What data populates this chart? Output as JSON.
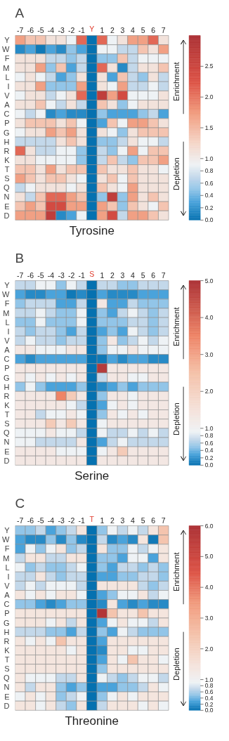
{
  "chart_data": [
    {
      "type": "heatmap",
      "title": "A",
      "xlabel": "Tyrosine",
      "annotations": [
        "Enrichment",
        "Depletion"
      ],
      "categories": [
        "-7",
        "-6",
        "-5",
        "-4",
        "-3",
        "-2",
        "-1",
        "Y",
        "1",
        "2",
        "3",
        "4",
        "5",
        "6",
        "7"
      ],
      "y_categories": [
        "Y",
        "W",
        "F",
        "M",
        "L",
        "I",
        "V",
        "A",
        "C",
        "P",
        "G",
        "H",
        "R",
        "K",
        "T",
        "S",
        "Q",
        "N",
        "E",
        "D"
      ],
      "clim": [
        0,
        3
      ],
      "cticks": [
        {
          "value": 0,
          "label": "0.0"
        },
        {
          "value": 0.2,
          "label": "0.2"
        },
        {
          "value": 0.4,
          "label": "0.4"
        },
        {
          "value": 0.6,
          "label": "0.6"
        },
        {
          "value": 0.8,
          "label": "0.8"
        },
        {
          "value": 1,
          "label": "1.0"
        },
        {
          "value": 1.5,
          "label": "1.5"
        },
        {
          "value": 2,
          "label": "2.0"
        },
        {
          "value": 2.5,
          "label": "2.5"
        }
      ],
      "colors": [
        "#0571b0",
        "#4aa3db",
        "#92c5e8",
        "#c3d8ea",
        "#eef2f5",
        "#f5d6c8",
        "#f19a7c",
        "#dc5245",
        "#ab3034"
      ],
      "cells": [
        [
          1.7,
          1.4,
          1.4,
          1.1,
          1.1,
          0.9,
          2.1,
          0,
          2.1,
          0.9,
          1.1,
          1.7,
          1.7,
          2.1,
          1.1
        ],
        [
          0.15,
          0.3,
          0.05,
          0.3,
          0.15,
          0.5,
          0.3,
          0,
          0.9,
          0.9,
          0.7,
          0.7,
          1.4,
          1.1,
          1.7
        ],
        [
          1.1,
          1.1,
          1.1,
          0.7,
          0.7,
          0.5,
          0.7,
          0,
          0.5,
          0.5,
          1.4,
          0.7,
          0.9,
          0.9,
          0.9
        ],
        [
          1.1,
          1.1,
          1.7,
          0.5,
          1.4,
          0.3,
          0.7,
          0,
          2.1,
          1.1,
          0.15,
          0.7,
          1.1,
          1.1,
          1.4
        ],
        [
          0.9,
          1.1,
          0.9,
          0.7,
          0.3,
          0.5,
          1.1,
          0,
          1.1,
          0.3,
          1.4,
          0.7,
          0.5,
          1.1,
          0.7
        ],
        [
          1.1,
          1.1,
          1.7,
          0.5,
          0.5,
          0.5,
          1.7,
          0,
          1.1,
          0.9,
          1.7,
          0.7,
          0.7,
          0.9,
          0.7
        ],
        [
          0.9,
          1.1,
          1.1,
          0.7,
          0.9,
          1.1,
          2.1,
          0,
          2.7,
          1.7,
          2.4,
          0.9,
          0.9,
          0.9,
          1.1
        ],
        [
          1.1,
          1.1,
          1.4,
          0.9,
          0.7,
          1.1,
          0.7,
          0,
          1.4,
          1.1,
          0.5,
          0.9,
          1.1,
          1.1,
          1.1
        ],
        [
          0.9,
          0.7,
          0.9,
          0.15,
          0.3,
          0.15,
          0.15,
          0,
          0.5,
          0.3,
          0.3,
          0.3,
          0.5,
          0.7,
          0.3
        ],
        [
          1.1,
          1.4,
          1.4,
          1.4,
          1.1,
          1.4,
          0.9,
          0,
          0.3,
          1.4,
          0.9,
          1.7,
          1.7,
          1.4,
          1.1
        ],
        [
          0.9,
          1.1,
          1.1,
          1.7,
          1.4,
          1.7,
          1.1,
          0,
          1.1,
          0.9,
          0.5,
          1.1,
          1.4,
          1.4,
          1.4
        ],
        [
          0.7,
          0.7,
          0.7,
          0.7,
          1.1,
          1.4,
          1.1,
          0,
          0.5,
          0.5,
          0.7,
          1.1,
          0.9,
          0.9,
          0.7
        ],
        [
          2.1,
          1.1,
          0.7,
          0.7,
          0.9,
          0.9,
          0.5,
          0,
          0.7,
          0.5,
          0.9,
          1.7,
          0.9,
          1.4,
          1.4
        ],
        [
          1.1,
          1.1,
          0.9,
          0.9,
          0.9,
          0.9,
          0.5,
          0,
          0.7,
          1.4,
          0.7,
          0.5,
          1.4,
          1.4,
          1.7
        ],
        [
          1.4,
          1.4,
          1.1,
          1.7,
          1.1,
          1.4,
          1.4,
          0,
          1.4,
          1.1,
          1.1,
          1.4,
          1.1,
          1.1,
          0.9
        ],
        [
          1.7,
          1.4,
          1.1,
          1.4,
          1.4,
          1.1,
          0.9,
          0,
          1.1,
          1.4,
          0.9,
          1.4,
          1.1,
          1.1,
          1.1
        ],
        [
          0.7,
          0.9,
          1.1,
          1.1,
          1.1,
          0.9,
          1.1,
          0,
          1.4,
          1.1,
          0.9,
          1.7,
          1.1,
          1.1,
          1.1
        ],
        [
          1.1,
          0.7,
          1.4,
          2.1,
          2.1,
          1.7,
          1.4,
          0,
          0.5,
          2.7,
          0.5,
          1.7,
          1.1,
          1.4,
          1.1
        ],
        [
          1.4,
          1.7,
          1.4,
          2.4,
          2.4,
          1.7,
          1.7,
          0,
          1.7,
          1.4,
          0.5,
          1.4,
          1.1,
          0.9,
          1.4
        ],
        [
          1.7,
          1.7,
          1.7,
          2.7,
          0.15,
          0.3,
          0.9,
          0,
          1.7,
          2.4,
          0.7,
          1.7,
          1.7,
          1.4,
          1.1
        ]
      ]
    },
    {
      "type": "heatmap",
      "title": "B",
      "xlabel": "Serine",
      "annotations": [
        "Enrichment",
        "Depletion"
      ],
      "categories": [
        "-7",
        "-6",
        "-5",
        "-4",
        "-3",
        "-2",
        "-1",
        "S",
        "1",
        "2",
        "3",
        "4",
        "5",
        "6",
        "7"
      ],
      "y_categories": [
        "Y",
        "W",
        "F",
        "M",
        "L",
        "I",
        "V",
        "A",
        "C",
        "P",
        "G",
        "H",
        "R",
        "K",
        "T",
        "S",
        "Q",
        "N",
        "E",
        "D"
      ],
      "clim": [
        0,
        5
      ],
      "cticks": [
        {
          "value": 0,
          "label": "0.0"
        },
        {
          "value": 0.2,
          "label": "0.2"
        },
        {
          "value": 0.4,
          "label": "0.4"
        },
        {
          "value": 0.6,
          "label": "0.6"
        },
        {
          "value": 0.8,
          "label": "0.8"
        },
        {
          "value": 1,
          "label": "1.0"
        },
        {
          "value": 2,
          "label": "2.0"
        },
        {
          "value": 3,
          "label": "3.0"
        },
        {
          "value": 4,
          "label": "4.0"
        },
        {
          "value": 5,
          "label": "5.0"
        }
      ],
      "colors": [
        "#0571b0",
        "#4aa3db",
        "#92c5e8",
        "#c3d8ea",
        "#eef2f5",
        "#f5e2da",
        "#f4c1a9",
        "#ee8466",
        "#ab3034"
      ],
      "cells": [
        [
          0.7,
          0.7,
          0.9,
          0.9,
          0.5,
          0.9,
          0.7,
          0,
          0.7,
          0.7,
          0.5,
          0.5,
          0.7,
          0.7,
          0.7
        ],
        [
          0.3,
          0.15,
          0.15,
          0.3,
          0.3,
          0.05,
          0.15,
          0,
          0.3,
          0.15,
          0.15,
          0.15,
          0.3,
          0.3,
          0.3
        ],
        [
          0.5,
          0.7,
          0.7,
          0.7,
          0.3,
          0.3,
          0.7,
          0,
          1.3,
          0.3,
          0.3,
          0.7,
          0.5,
          0.5,
          0.5
        ],
        [
          0.7,
          0.7,
          0.9,
          0.7,
          0.5,
          0.5,
          0.9,
          0,
          0.5,
          0.3,
          0.7,
          0.9,
          0.7,
          0.5,
          0.7
        ],
        [
          0.5,
          0.5,
          0.9,
          0.5,
          0.5,
          0.5,
          0.9,
          0,
          0.5,
          0.5,
          0.5,
          0.7,
          0.7,
          0.5,
          0.7
        ],
        [
          0.7,
          0.5,
          0.7,
          0.7,
          0.5,
          0.3,
          0.7,
          0,
          0.3,
          0.5,
          0.3,
          0.9,
          0.7,
          0.5,
          0.7
        ],
        [
          0.7,
          0.9,
          0.7,
          0.7,
          0.5,
          0.7,
          0.7,
          0,
          0.5,
          1.3,
          0.5,
          0.7,
          0.9,
          0.7,
          0.9
        ],
        [
          1.3,
          1.3,
          0.9,
          0.9,
          0.9,
          1.3,
          1.3,
          0,
          0.5,
          0.9,
          0.9,
          1.3,
          0.9,
          0.9,
          0.9
        ],
        [
          0.3,
          0.15,
          0.3,
          0.3,
          0.3,
          0.3,
          0.3,
          0,
          0.05,
          0.3,
          0.15,
          0.3,
          0.3,
          0.15,
          0.15
        ],
        [
          1.3,
          1.3,
          1.3,
          1.3,
          1.3,
          1.3,
          1.3,
          0,
          4.8,
          1.3,
          1.3,
          1.3,
          1.3,
          1.3,
          1.3
        ],
        [
          1.3,
          0.9,
          1.3,
          0.9,
          1.3,
          0.9,
          1.3,
          0,
          0.7,
          1.3,
          1.3,
          0.9,
          0.9,
          1.3,
          1.3
        ],
        [
          0.5,
          0.9,
          0.5,
          0.3,
          0.3,
          0.3,
          0.5,
          0,
          0.15,
          0.3,
          0.5,
          0.3,
          0.5,
          0.5,
          0.5
        ],
        [
          1.3,
          1.3,
          1.3,
          1.3,
          3.5,
          2.2,
          1.3,
          0,
          0.5,
          1.3,
          1.3,
          0.9,
          1.3,
          1.3,
          1.3
        ],
        [
          1.3,
          1.3,
          1.3,
          1.3,
          1.3,
          0.9,
          0.7,
          0,
          0.3,
          0.9,
          1.3,
          0.9,
          1.3,
          1.3,
          1.3
        ],
        [
          1.3,
          1.3,
          0.7,
          0.9,
          0.9,
          1.3,
          0.9,
          0,
          0.5,
          1.3,
          0.9,
          1.3,
          0.9,
          1.3,
          1.3
        ],
        [
          1.3,
          1.3,
          1.3,
          2.2,
          1.3,
          2.2,
          1.3,
          0,
          0.9,
          1.3,
          1.3,
          1.3,
          1.3,
          1.3,
          1.3
        ],
        [
          0.9,
          0.9,
          0.9,
          1.3,
          0.9,
          0.9,
          0.7,
          0,
          0.9,
          0.7,
          0.7,
          0.9,
          0.7,
          0.9,
          0.7
        ],
        [
          0.9,
          0.9,
          0.7,
          0.7,
          0.7,
          0.7,
          1.3,
          0,
          0.3,
          0.7,
          0.9,
          0.7,
          0.7,
          0.7,
          0.7
        ],
        [
          1.3,
          1.3,
          1.3,
          1.3,
          0.9,
          0.9,
          0.9,
          0,
          0.9,
          1.3,
          2.2,
          1.3,
          1.3,
          1.3,
          1.3
        ],
        [
          1.3,
          1.3,
          1.3,
          1.3,
          1.3,
          1.3,
          1.3,
          0,
          1.3,
          1.3,
          1.3,
          1.3,
          1.3,
          1.3,
          1.3
        ]
      ]
    },
    {
      "type": "heatmap",
      "title": "C",
      "xlabel": "Threonine",
      "annotations": [
        "Enrichment",
        "Depletion"
      ],
      "categories": [
        "-7",
        "-6",
        "-5",
        "-4",
        "-3",
        "-2",
        "-1",
        "T",
        "1",
        "2",
        "3",
        "4",
        "5",
        "6",
        "7"
      ],
      "y_categories": [
        "Y",
        "W",
        "F",
        "M",
        "L",
        "I",
        "V",
        "A",
        "C",
        "P",
        "G",
        "H",
        "R",
        "K",
        "T",
        "S",
        "Q",
        "N",
        "E",
        "D"
      ],
      "clim": [
        0,
        6
      ],
      "cticks": [
        {
          "value": 0,
          "label": "0.0"
        },
        {
          "value": 0.2,
          "label": "0.2"
        },
        {
          "value": 0.4,
          "label": "0.4"
        },
        {
          "value": 0.6,
          "label": "0.6"
        },
        {
          "value": 0.8,
          "label": "0.8"
        },
        {
          "value": 1,
          "label": "1.0"
        },
        {
          "value": 2,
          "label": "2.0"
        },
        {
          "value": 3,
          "label": "3.0"
        },
        {
          "value": 4,
          "label": "4.0"
        },
        {
          "value": 5,
          "label": "5.0"
        },
        {
          "value": 6,
          "label": "6.0"
        }
      ],
      "colors": [
        "#0571b0",
        "#4aa3db",
        "#92c5e8",
        "#c3d8ea",
        "#eef2f5",
        "#f5e2da",
        "#f4c1a9",
        "#f19a7c",
        "#dc5245",
        "#ab3034"
      ],
      "cells": [
        [
          0.5,
          0.5,
          0.7,
          0.3,
          0.5,
          0.7,
          1.4,
          0,
          0.5,
          0.9,
          0.7,
          0.9,
          0.7,
          1.4,
          2.4
        ],
        [
          0.3,
          0.15,
          0.15,
          0.5,
          0.15,
          0.5,
          0.15,
          0,
          0.7,
          0.15,
          0.3,
          0.15,
          1.4,
          0.05,
          2.4
        ],
        [
          0.3,
          0.9,
          0.5,
          0.9,
          1.4,
          0.5,
          0.7,
          0,
          1.4,
          0.5,
          0.5,
          0.9,
          0.7,
          0.9,
          1.4
        ],
        [
          0.7,
          1.4,
          1.4,
          0.7,
          0.7,
          1.4,
          1.4,
          0,
          0.5,
          0.5,
          0.3,
          0.9,
          0.9,
          0.3,
          1.4
        ],
        [
          0.9,
          0.5,
          0.7,
          0.5,
          0.5,
          0.7,
          0.9,
          0,
          0.5,
          0.3,
          0.7,
          0.7,
          0.5,
          0.7,
          0.5
        ],
        [
          0.7,
          0.7,
          1.4,
          0.7,
          0.5,
          0.7,
          0.7,
          0,
          0.3,
          0.3,
          0.5,
          0.5,
          0.7,
          0.7,
          0.5
        ],
        [
          0.7,
          0.9,
          0.7,
          0.9,
          0.9,
          0.9,
          0.7,
          0,
          1.4,
          1.4,
          1.4,
          1.4,
          0.7,
          0.5,
          0.7
        ],
        [
          1.4,
          0.9,
          1.4,
          0.9,
          1.4,
          1.4,
          0.9,
          0,
          0.3,
          0.5,
          0.9,
          0.9,
          1.4,
          0.7,
          0.9
        ],
        [
          0.5,
          0.5,
          0.3,
          0.15,
          0.3,
          0.5,
          0.5,
          0,
          0.15,
          1.4,
          0.3,
          0.15,
          0.3,
          0.15,
          0.15
        ],
        [
          1.4,
          1.4,
          1.4,
          1.4,
          1.4,
          1.4,
          1.4,
          0,
          5.8,
          2.4,
          1.4,
          1.4,
          2.4,
          1.4,
          1.4
        ],
        [
          1.4,
          1.4,
          1.4,
          0.9,
          1.4,
          0.7,
          1.4,
          0,
          0.3,
          0.9,
          1.4,
          0.9,
          0.9,
          0.7,
          1.4
        ],
        [
          0.7,
          0.7,
          0.7,
          0.5,
          0.5,
          0.3,
          0.7,
          0,
          0.5,
          0.3,
          0.9,
          0.7,
          0.5,
          0.5,
          0.5
        ],
        [
          1.4,
          0.9,
          1.4,
          0.9,
          2.4,
          1.4,
          1.4,
          0,
          0.3,
          1.4,
          1.4,
          1.4,
          1.4,
          1.4,
          1.4
        ],
        [
          1.4,
          1.4,
          1.4,
          1.4,
          1.4,
          0.9,
          1.4,
          0,
          0.15,
          1.4,
          1.4,
          0.9,
          0.9,
          1.4,
          1.4
        ],
        [
          1.4,
          1.4,
          1.4,
          1.4,
          1.4,
          1.4,
          1.4,
          0,
          0.3,
          1.4,
          0.9,
          2.4,
          1.4,
          1.4,
          0.9
        ],
        [
          1.4,
          1.4,
          1.4,
          1.4,
          1.4,
          1.4,
          1.4,
          0,
          0.5,
          1.4,
          1.4,
          1.4,
          1.4,
          1.4,
          1.4
        ],
        [
          1.4,
          0.9,
          0.9,
          0.9,
          0.7,
          0.7,
          1.4,
          0,
          0.9,
          0.7,
          0.5,
          0.7,
          0.9,
          0.9,
          0.7
        ],
        [
          1.4,
          0.7,
          1.4,
          1.4,
          0.5,
          0.3,
          0.5,
          0,
          0.3,
          0.3,
          0.5,
          0.5,
          0.7,
          1.4,
          0.9
        ],
        [
          0.9,
          1.4,
          0.9,
          1.4,
          0.5,
          0.7,
          0.9,
          0,
          0.5,
          0.9,
          1.4,
          0.9,
          1.4,
          1.4,
          1.4
        ],
        [
          1.4,
          1.4,
          0.9,
          1.4,
          0.7,
          0.5,
          1.4,
          0,
          0.7,
          1.4,
          1.4,
          1.4,
          0.9,
          1.4,
          0.9
        ]
      ]
    }
  ]
}
